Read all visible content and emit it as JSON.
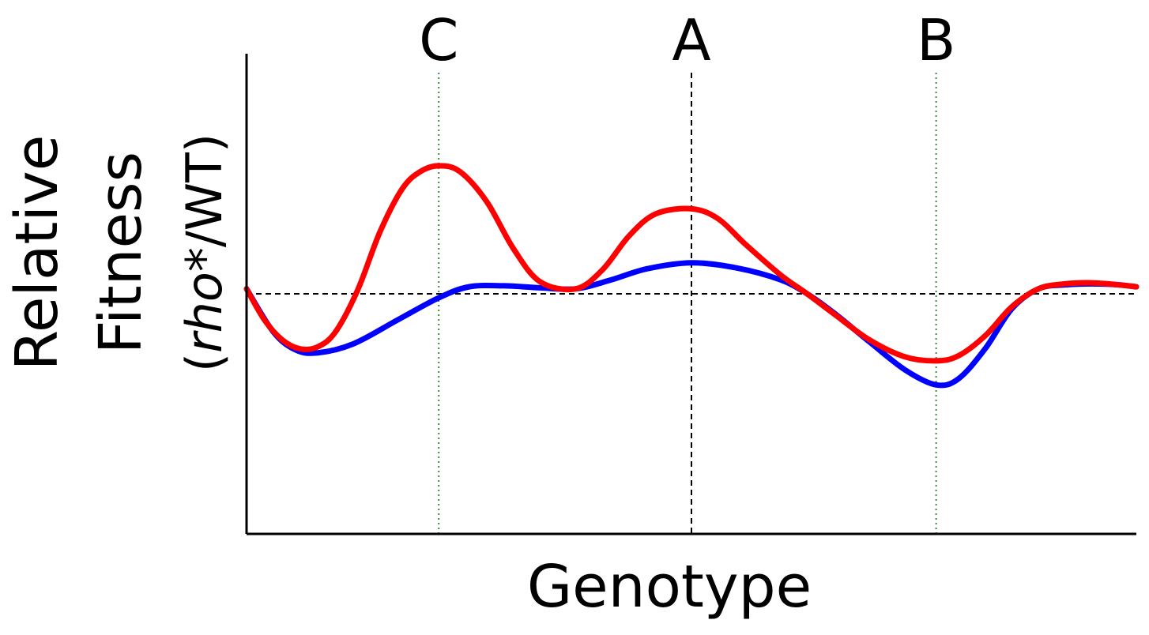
{
  "chart_data": {
    "type": "line",
    "title": "",
    "xlabel": "Genotype",
    "ylabel": {
      "line1": "Relative",
      "line2": "Fitness",
      "line3_prefix": "(",
      "line3_italic": "rho",
      "line3_suffix": "*/WT)"
    },
    "xlim": [
      0,
      100
    ],
    "ylim": [
      -2.4,
      2.4
    ],
    "baseline": 0,
    "markers": [
      {
        "label": "C",
        "x": 21.6,
        "style": "dotted",
        "color": "#3a8a3a"
      },
      {
        "label": "A",
        "x": 50.0,
        "style": "dashed",
        "color": "#000000"
      },
      {
        "label": "B",
        "x": 77.5,
        "style": "dotted",
        "color": "#3a8a3a"
      }
    ],
    "series": [
      {
        "color": "#0000ff",
        "points": [
          [
            0,
            0.05
          ],
          [
            3,
            -0.38
          ],
          [
            5.5,
            -0.56
          ],
          [
            8,
            -0.59
          ],
          [
            12,
            -0.5
          ],
          [
            17,
            -0.26
          ],
          [
            21.6,
            -0.04
          ],
          [
            25,
            0.07
          ],
          [
            29,
            0.08
          ],
          [
            33,
            0.06
          ],
          [
            37,
            0.05
          ],
          [
            41,
            0.14
          ],
          [
            45,
            0.25
          ],
          [
            50,
            0.31
          ],
          [
            55,
            0.26
          ],
          [
            60,
            0.14
          ],
          [
            63,
            0.0
          ],
          [
            66,
            -0.19
          ],
          [
            70,
            -0.48
          ],
          [
            74,
            -0.76
          ],
          [
            77.5,
            -0.91
          ],
          [
            80,
            -0.85
          ],
          [
            83,
            -0.55
          ],
          [
            86,
            -0.15
          ],
          [
            89,
            0.05
          ],
          [
            92,
            0.09
          ],
          [
            95,
            0.1
          ],
          [
            98,
            0.09
          ],
          [
            100,
            0.07
          ]
        ]
      },
      {
        "color": "#ff0000",
        "points": [
          [
            0,
            0.05
          ],
          [
            2,
            -0.26
          ],
          [
            4,
            -0.46
          ],
          [
            6,
            -0.55
          ],
          [
            8,
            -0.53
          ],
          [
            10,
            -0.38
          ],
          [
            12.5,
            0.04
          ],
          [
            15,
            0.62
          ],
          [
            17.5,
            1.05
          ],
          [
            19.5,
            1.22
          ],
          [
            21.6,
            1.28
          ],
          [
            24,
            1.22
          ],
          [
            27,
            0.92
          ],
          [
            30,
            0.45
          ],
          [
            33,
            0.12
          ],
          [
            37,
            0.05
          ],
          [
            40,
            0.24
          ],
          [
            43,
            0.58
          ],
          [
            46,
            0.8
          ],
          [
            50,
            0.85
          ],
          [
            53,
            0.75
          ],
          [
            56,
            0.5
          ],
          [
            60,
            0.19
          ],
          [
            63,
            0.0
          ],
          [
            66,
            -0.2
          ],
          [
            70,
            -0.46
          ],
          [
            74,
            -0.63
          ],
          [
            77.5,
            -0.67
          ],
          [
            80,
            -0.62
          ],
          [
            83,
            -0.42
          ],
          [
            86,
            -0.13
          ],
          [
            89,
            0.05
          ],
          [
            92,
            0.1
          ],
          [
            95,
            0.11
          ],
          [
            98,
            0.09
          ],
          [
            100,
            0.07
          ]
        ]
      }
    ],
    "grid": false,
    "legend": "none"
  }
}
